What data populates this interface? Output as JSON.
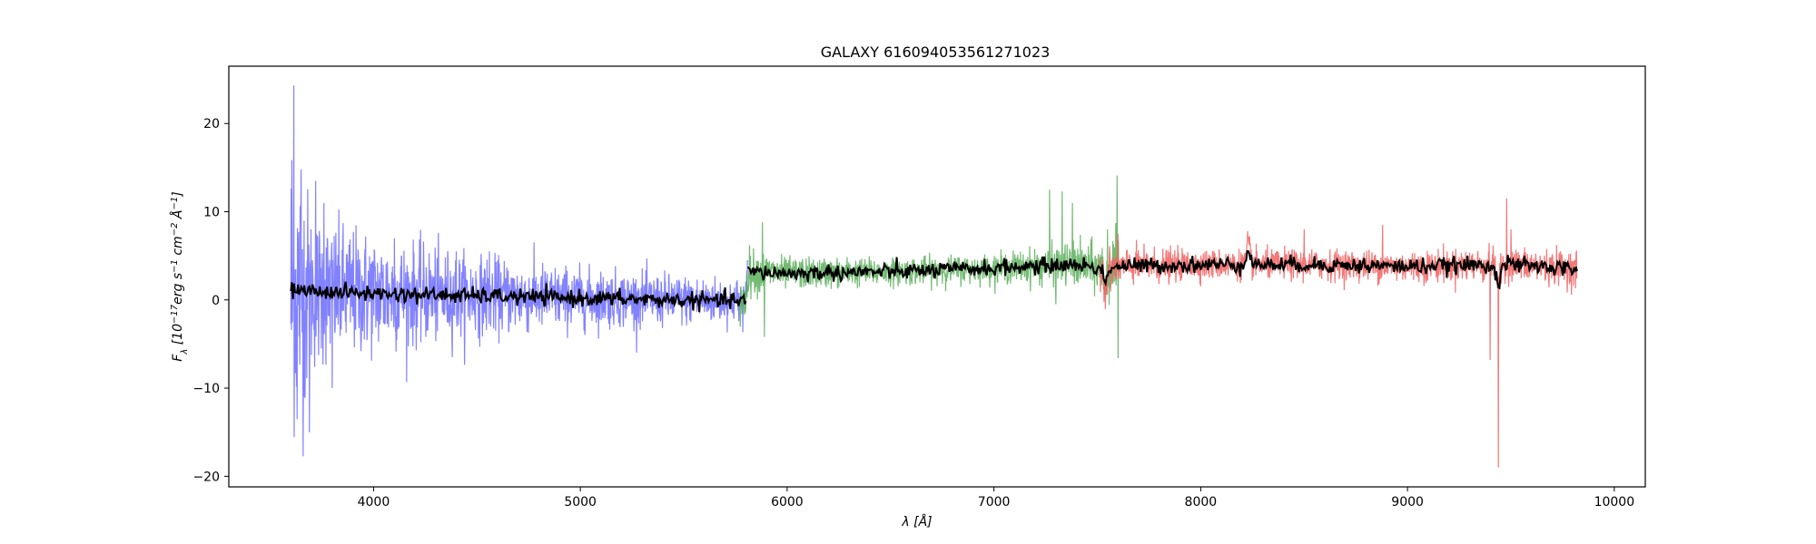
{
  "chart_data": {
    "type": "line",
    "title": "GALAXY 616094053561271023",
    "xlabel": "λ [Å]",
    "ylabel_parts": {
      "main": "F",
      "sub": "λ",
      "b1": " [10",
      "e1": "−17",
      "b2": "erg s",
      "e2": "−1",
      "b3": " cm",
      "e3": "−2",
      "b4": " Å",
      "e4": "−1",
      "b5": "]"
    },
    "xlim": [
      3300,
      10150
    ],
    "ylim": [
      -21.2,
      26.5
    ],
    "xticks": [
      4000,
      5000,
      6000,
      7000,
      8000,
      9000,
      10000
    ],
    "yticks": [
      -20,
      -10,
      0,
      10,
      20
    ],
    "xtick_labels": [
      "4000",
      "5000",
      "6000",
      "7000",
      "8000",
      "9000",
      "10000"
    ],
    "ytick_labels": [
      "−20",
      "−10",
      "0",
      "10",
      "20"
    ],
    "grid": false,
    "series": [
      {
        "color": "#7b7bff",
        "opacity": 0.95,
        "x_range": [
          3600,
          5810
        ],
        "envelope": [
          [
            3600,
            23.0
          ],
          [
            3610,
            15.0
          ],
          [
            3660,
            13.0
          ],
          [
            3700,
            8.0
          ],
          [
            3800,
            7.0
          ],
          [
            4000,
            6.0
          ],
          [
            4200,
            5.0
          ],
          [
            4500,
            4.0
          ],
          [
            5000,
            3.0
          ],
          [
            5500,
            2.5
          ],
          [
            5810,
            2.2
          ]
        ],
        "spikes": [
          [
            3615,
            24.3
          ],
          [
            3630,
            -13.5
          ],
          [
            3650,
            14.8
          ],
          [
            3690,
            -15.0
          ],
          [
            3720,
            13.5
          ],
          [
            3760,
            11.0
          ],
          [
            3800,
            -10.0
          ],
          [
            4100,
            7.0
          ],
          [
            4400,
            5.5
          ],
          [
            4560,
            5.5
          ]
        ]
      },
      {
        "color": "#5aae5a",
        "opacity": 0.85,
        "x_range": [
          5770,
          7610
        ],
        "envelope": [
          [
            5770,
            2.5
          ],
          [
            6000,
            1.6
          ],
          [
            6500,
            1.4
          ],
          [
            7000,
            1.4
          ],
          [
            7200,
            1.8
          ],
          [
            7500,
            2.5
          ],
          [
            7610,
            3.5
          ]
        ],
        "spikes": [
          [
            5880,
            8.8
          ],
          [
            5890,
            -4.2
          ],
          [
            7270,
            12.5
          ],
          [
            7300,
            -0.5
          ],
          [
            7330,
            12.3
          ],
          [
            7380,
            11.0
          ],
          [
            7550,
            8.0
          ],
          [
            7595,
            14.1
          ],
          [
            7600,
            -6.6
          ]
        ]
      },
      {
        "color": "#f06060",
        "opacity": 0.85,
        "x_range": [
          7510,
          9820
        ],
        "envelope": [
          [
            7510,
            2.0
          ],
          [
            8000,
            1.5
          ],
          [
            8500,
            1.5
          ],
          [
            9000,
            1.6
          ],
          [
            9500,
            1.7
          ],
          [
            9820,
            1.8
          ]
        ],
        "spikes": [
          [
            7600,
            7.5
          ],
          [
            8230,
            7.2
          ],
          [
            8500,
            8.0
          ],
          [
            8880,
            8.5
          ],
          [
            9400,
            -6.8
          ],
          [
            9440,
            -19.0
          ],
          [
            9480,
            11.5
          ],
          [
            9500,
            8.0
          ]
        ]
      }
    ],
    "model": {
      "color": "#000000",
      "knots": [
        [
          3600,
          1.2
        ],
        [
          3700,
          1.0
        ],
        [
          3900,
          0.8
        ],
        [
          4200,
          0.6
        ],
        [
          4600,
          0.4
        ],
        [
          5000,
          0.2
        ],
        [
          5400,
          0.0
        ],
        [
          5800,
          -0.1
        ],
        [
          5810,
          3.2
        ],
        [
          6000,
          3.0
        ],
        [
          6500,
          3.2
        ],
        [
          7000,
          3.6
        ],
        [
          7400,
          4.0
        ],
        [
          7500,
          3.6
        ],
        [
          7600,
          3.8
        ],
        [
          8000,
          4.0
        ],
        [
          8500,
          4.0
        ],
        [
          9000,
          3.8
        ],
        [
          9500,
          4.0
        ],
        [
          9820,
          3.5
        ]
      ],
      "features": [
        [
          8230,
          6.2
        ],
        [
          7540,
          1.8
        ],
        [
          9440,
          1.5
        ]
      ]
    }
  }
}
